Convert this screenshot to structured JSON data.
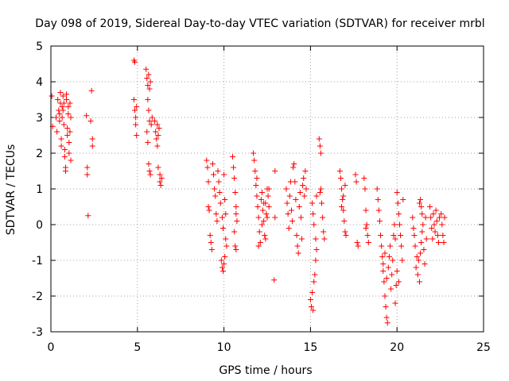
{
  "chart_data": {
    "type": "scatter",
    "title": "Day 098 of 2019, Sidereal Day-to-day VTEC variation (SDTVAR) for receiver mrbl",
    "xlabel": "GPS time / hours",
    "ylabel": "SDTVAR / TECUs",
    "xlim": [
      0,
      25
    ],
    "ylim": [
      -3,
      5
    ],
    "xticks": [
      0,
      5,
      10,
      15,
      20,
      25
    ],
    "yticks": [
      -3,
      -2,
      -1,
      0,
      1,
      2,
      3,
      4,
      5
    ],
    "xtick_labels": [
      "0",
      "5",
      "10",
      "15",
      "20",
      "25"
    ],
    "ytick_labels": [
      "-3",
      "-2",
      "-1",
      "0",
      "1",
      "2",
      "3",
      "4",
      "5"
    ],
    "grid": true,
    "marker": "+",
    "color": "#ff0000",
    "series": [
      {
        "name": "SDTVAR",
        "points": [
          [
            0.05,
            3.6
          ],
          [
            0.1,
            2.75
          ],
          [
            0.3,
            3.0
          ],
          [
            0.35,
            2.6
          ],
          [
            0.4,
            3.5
          ],
          [
            0.45,
            3.2
          ],
          [
            0.5,
            3.1
          ],
          [
            0.5,
            2.9
          ],
          [
            0.55,
            3.4
          ],
          [
            0.55,
            3.7
          ],
          [
            0.6,
            2.2
          ],
          [
            0.6,
            2.4
          ],
          [
            0.65,
            3.3
          ],
          [
            0.65,
            3.0
          ],
          [
            0.7,
            3.6
          ],
          [
            0.7,
            3.2
          ],
          [
            0.75,
            2.8
          ],
          [
            0.75,
            3.4
          ],
          [
            0.8,
            2.1
          ],
          [
            0.8,
            1.9
          ],
          [
            0.85,
            1.6
          ],
          [
            0.85,
            1.5
          ],
          [
            0.9,
            3.5
          ],
          [
            0.9,
            3.65
          ],
          [
            0.95,
            2.5
          ],
          [
            0.95,
            2.7
          ],
          [
            1.0,
            3.3
          ],
          [
            1.0,
            3.1
          ],
          [
            1.05,
            2.3
          ],
          [
            1.05,
            2.0
          ],
          [
            1.1,
            3.4
          ],
          [
            1.1,
            2.6
          ],
          [
            1.15,
            3.0
          ],
          [
            1.15,
            1.8
          ],
          [
            2.05,
            3.05
          ],
          [
            2.1,
            1.6
          ],
          [
            2.1,
            1.4
          ],
          [
            2.15,
            0.25
          ],
          [
            2.3,
            2.9
          ],
          [
            2.35,
            3.75
          ],
          [
            2.4,
            2.2
          ],
          [
            2.4,
            2.4
          ],
          [
            4.8,
            4.6
          ],
          [
            4.85,
            4.55
          ],
          [
            4.8,
            3.5
          ],
          [
            4.85,
            3.2
          ],
          [
            4.9,
            3.0
          ],
          [
            4.9,
            2.8
          ],
          [
            4.95,
            2.5
          ],
          [
            4.95,
            3.3
          ],
          [
            5.5,
            4.35
          ],
          [
            5.55,
            4.1
          ],
          [
            5.6,
            3.9
          ],
          [
            5.65,
            4.2
          ],
          [
            5.7,
            3.8
          ],
          [
            5.75,
            4.0
          ],
          [
            5.6,
            3.5
          ],
          [
            5.65,
            3.2
          ],
          [
            5.7,
            2.9
          ],
          [
            5.55,
            2.6
          ],
          [
            5.6,
            2.3
          ],
          [
            5.65,
            1.7
          ],
          [
            5.7,
            1.5
          ],
          [
            5.75,
            1.4
          ],
          [
            5.8,
            2.8
          ],
          [
            5.85,
            3.0
          ],
          [
            6.0,
            2.9
          ],
          [
            6.05,
            2.6
          ],
          [
            6.1,
            2.4
          ],
          [
            6.15,
            2.2
          ],
          [
            6.2,
            2.5
          ],
          [
            6.25,
            2.7
          ],
          [
            6.3,
            1.4
          ],
          [
            6.3,
            1.2
          ],
          [
            6.35,
            1.1
          ],
          [
            6.4,
            1.3
          ],
          [
            6.2,
            1.6
          ],
          [
            6.15,
            2.8
          ],
          [
            9.0,
            1.8
          ],
          [
            9.05,
            1.6
          ],
          [
            9.1,
            1.2
          ],
          [
            9.1,
            0.5
          ],
          [
            9.15,
            0.4
          ],
          [
            9.2,
            -0.3
          ],
          [
            9.25,
            -0.5
          ],
          [
            9.3,
            -0.7
          ],
          [
            9.35,
            1.7
          ],
          [
            9.4,
            1.4
          ],
          [
            9.45,
            1.0
          ],
          [
            9.5,
            0.8
          ],
          [
            9.55,
            0.3
          ],
          [
            9.6,
            0.1
          ],
          [
            9.65,
            1.5
          ],
          [
            9.7,
            1.2
          ],
          [
            9.75,
            0.9
          ],
          [
            9.8,
            0.6
          ],
          [
            9.85,
            -1.0
          ],
          [
            9.9,
            -1.2
          ],
          [
            9.95,
            -1.3
          ],
          [
            10.0,
            -1.1
          ],
          [
            10.05,
            -0.9
          ],
          [
            9.9,
            0.2
          ],
          [
            9.95,
            -0.1
          ],
          [
            10.0,
            1.4
          ],
          [
            10.05,
            0.7
          ],
          [
            10.1,
            0.3
          ],
          [
            10.1,
            -0.4
          ],
          [
            10.15,
            -0.6
          ],
          [
            10.5,
            1.9
          ],
          [
            10.55,
            1.6
          ],
          [
            10.6,
            1.3
          ],
          [
            10.65,
            0.9
          ],
          [
            10.7,
            0.5
          ],
          [
            10.75,
            0.1
          ],
          [
            10.6,
            -0.2
          ],
          [
            10.65,
            -0.6
          ],
          [
            10.7,
            -0.7
          ],
          [
            10.7,
            0.3
          ],
          [
            11.7,
            2.0
          ],
          [
            11.75,
            1.8
          ],
          [
            11.8,
            1.5
          ],
          [
            11.85,
            1.1
          ],
          [
            11.9,
            0.8
          ],
          [
            11.95,
            0.5
          ],
          [
            12.0,
            0.2
          ],
          [
            12.05,
            -0.2
          ],
          [
            12.1,
            -0.5
          ],
          [
            12.15,
            0.7
          ],
          [
            12.2,
            0.9
          ],
          [
            12.25,
            0.4
          ],
          [
            12.3,
            0.1
          ],
          [
            12.35,
            -0.3
          ],
          [
            12.4,
            0.6
          ],
          [
            12.45,
            0.3
          ],
          [
            12.5,
            1.0
          ],
          [
            12.55,
            0.8
          ],
          [
            12.6,
            0.5
          ],
          [
            12.2,
            0.0
          ],
          [
            12.3,
            0.6
          ],
          [
            12.4,
            -0.4
          ],
          [
            12.5,
            0.2
          ],
          [
            12.0,
            -0.6
          ],
          [
            11.9,
            1.3
          ],
          [
            12.6,
            1.0
          ],
          [
            12.9,
            -1.55
          ],
          [
            12.95,
            1.5
          ],
          [
            12.95,
            0.2
          ],
          [
            13.6,
            1.0
          ],
          [
            13.65,
            0.6
          ],
          [
            13.7,
            0.3
          ],
          [
            13.75,
            -0.1
          ],
          [
            13.8,
            0.8
          ],
          [
            13.85,
            1.2
          ],
          [
            13.9,
            0.4
          ],
          [
            13.95,
            0.1
          ],
          [
            14.0,
            1.6
          ],
          [
            14.05,
            1.7
          ],
          [
            14.1,
            1.2
          ],
          [
            14.15,
            0.7
          ],
          [
            14.2,
            -0.3
          ],
          [
            14.25,
            -0.6
          ],
          [
            14.3,
            -0.8
          ],
          [
            14.35,
            0.5
          ],
          [
            14.4,
            0.9
          ],
          [
            14.45,
            0.2
          ],
          [
            14.5,
            -0.4
          ],
          [
            14.55,
            1.1
          ],
          [
            14.6,
            1.3
          ],
          [
            14.65,
            0.8
          ],
          [
            14.7,
            1.5
          ],
          [
            14.75,
            1.0
          ],
          [
            15.0,
            -2.1
          ],
          [
            15.05,
            -2.3
          ],
          [
            15.1,
            -1.9
          ],
          [
            15.15,
            -2.4
          ],
          [
            15.2,
            -1.6
          ],
          [
            15.25,
            -1.4
          ],
          [
            15.3,
            -1.0
          ],
          [
            15.35,
            -0.7
          ],
          [
            15.1,
            0.6
          ],
          [
            15.15,
            0.3
          ],
          [
            15.2,
            0.0
          ],
          [
            15.3,
            -0.4
          ],
          [
            15.35,
            0.8
          ],
          [
            15.5,
            2.4
          ],
          [
            15.55,
            2.2
          ],
          [
            15.6,
            2.0
          ],
          [
            15.6,
            1.0
          ],
          [
            15.65,
            0.6
          ],
          [
            15.7,
            0.2
          ],
          [
            15.75,
            -0.2
          ],
          [
            15.8,
            -0.4
          ],
          [
            15.55,
            0.9
          ],
          [
            16.7,
            1.5
          ],
          [
            16.75,
            1.3
          ],
          [
            16.8,
            1.0
          ],
          [
            16.85,
            0.7
          ],
          [
            16.9,
            0.4
          ],
          [
            16.95,
            0.1
          ],
          [
            17.0,
            -0.2
          ],
          [
            17.05,
            -0.3
          ],
          [
            16.8,
            0.5
          ],
          [
            16.9,
            0.8
          ],
          [
            17.0,
            1.1
          ],
          [
            17.6,
            1.4
          ],
          [
            17.65,
            1.2
          ],
          [
            17.7,
            -0.5
          ],
          [
            17.75,
            -0.6
          ],
          [
            18.1,
            1.3
          ],
          [
            18.15,
            1.0
          ],
          [
            18.2,
            0.4
          ],
          [
            18.25,
            0.0
          ],
          [
            18.3,
            -0.3
          ],
          [
            18.35,
            -0.5
          ],
          [
            18.2,
            -0.1
          ],
          [
            18.85,
            1.0
          ],
          [
            18.9,
            0.7
          ],
          [
            18.95,
            0.4
          ],
          [
            19.0,
            0.1
          ],
          [
            19.05,
            -0.3
          ],
          [
            19.1,
            -0.6
          ],
          [
            19.15,
            -0.9
          ],
          [
            19.2,
            -1.3
          ],
          [
            19.25,
            -1.6
          ],
          [
            19.3,
            -2.0
          ],
          [
            19.35,
            -2.3
          ],
          [
            19.4,
            -2.6
          ],
          [
            19.45,
            -2.75
          ],
          [
            19.2,
            -1.1
          ],
          [
            19.3,
            -0.8
          ],
          [
            19.4,
            -1.5
          ],
          [
            19.5,
            -1.2
          ],
          [
            19.55,
            -0.9
          ],
          [
            19.6,
            -0.6
          ],
          [
            19.65,
            -1.8
          ],
          [
            19.7,
            -1.4
          ],
          [
            19.75,
            -1.0
          ],
          [
            19.8,
            -0.3
          ],
          [
            19.85,
            0.0
          ],
          [
            19.9,
            -2.2
          ],
          [
            19.95,
            -1.7
          ],
          [
            20.0,
            0.9
          ],
          [
            20.05,
            0.6
          ],
          [
            20.1,
            0.3
          ],
          [
            20.15,
            0.0
          ],
          [
            20.2,
            -0.3
          ],
          [
            20.25,
            -0.6
          ],
          [
            20.3,
            -1.0
          ],
          [
            20.35,
            0.7
          ],
          [
            20.0,
            -1.3
          ],
          [
            20.1,
            -1.6
          ],
          [
            19.9,
            -0.4
          ],
          [
            20.9,
            0.2
          ],
          [
            20.95,
            -0.1
          ],
          [
            21.0,
            -0.3
          ],
          [
            21.05,
            -0.6
          ],
          [
            21.1,
            -1.2
          ],
          [
            21.15,
            -0.9
          ],
          [
            21.2,
            -1.4
          ],
          [
            21.25,
            -1.0
          ],
          [
            21.3,
            -1.6
          ],
          [
            21.35,
            -0.8
          ],
          [
            21.4,
            -0.5
          ],
          [
            21.45,
            -0.2
          ],
          [
            21.3,
            0.6
          ],
          [
            21.35,
            0.7
          ],
          [
            21.4,
            0.5
          ],
          [
            21.45,
            0.3
          ],
          [
            21.5,
            0.0
          ],
          [
            21.55,
            -0.7
          ],
          [
            21.6,
            -1.1
          ],
          [
            21.65,
            0.2
          ],
          [
            21.7,
            -0.4
          ],
          [
            21.9,
            0.5
          ],
          [
            21.95,
            0.2
          ],
          [
            22.0,
            -0.1
          ],
          [
            22.05,
            -0.4
          ],
          [
            22.1,
            0.3
          ],
          [
            22.15,
            0.0
          ],
          [
            22.2,
            -0.2
          ],
          [
            22.25,
            0.4
          ],
          [
            22.3,
            0.1
          ],
          [
            22.35,
            -0.3
          ],
          [
            22.4,
            -0.5
          ],
          [
            22.45,
            0.2
          ],
          [
            22.55,
            0.3
          ],
          [
            22.6,
            0.0
          ],
          [
            22.65,
            -0.3
          ],
          [
            22.7,
            -0.5
          ],
          [
            22.75,
            0.2
          ]
        ]
      }
    ]
  }
}
